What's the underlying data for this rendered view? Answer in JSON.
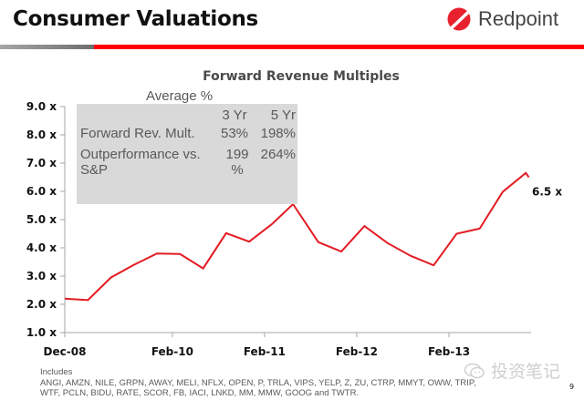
{
  "header": {
    "title": "Consumer Valuations",
    "brand": "Redpoint",
    "accent_color": "#ff0000",
    "brand_color": "#e8212e"
  },
  "inset": {
    "title": "Average %",
    "columns": [
      "",
      "3 Yr",
      "5 Yr"
    ],
    "rows": [
      {
        "label": "Forward Rev. Mult.",
        "yr3": "53%",
        "yr5": "198%"
      },
      {
        "label": "Outperformance vs. S&P",
        "yr3": "199 %",
        "yr5": "264%"
      }
    ]
  },
  "chart_data": {
    "type": "line",
    "title": "Forward Revenue Multiples",
    "xlabel": "",
    "ylabel": "",
    "x_tick_labels": [
      "Dec-08",
      "Feb-10",
      "Feb-11",
      "Feb-12",
      "Feb-13"
    ],
    "y_tick_labels": [
      "1.0 x",
      "2.0 x",
      "3.0 x",
      "4.0 x",
      "5.0 x",
      "6.0 x",
      "7.0 x",
      "8.0 x",
      "9.0 x"
    ],
    "ylim": [
      1.0,
      9.0
    ],
    "grid": false,
    "series": [
      {
        "name": "Forward Revenue Multiple",
        "color": "#e31b23",
        "x_months_from_dec08": [
          0,
          3,
          6,
          9,
          12,
          15,
          18,
          21,
          24,
          27,
          29.7,
          33,
          36,
          39,
          42,
          45,
          48,
          51,
          54,
          57,
          60,
          60.4
        ],
        "values": [
          2.2,
          2.15,
          2.95,
          3.4,
          3.8,
          3.78,
          3.27,
          4.52,
          4.22,
          4.85,
          5.55,
          4.2,
          3.87,
          4.77,
          4.17,
          3.72,
          3.38,
          4.5,
          4.68,
          5.98,
          6.65,
          6.5
        ]
      }
    ],
    "annotations": [
      {
        "text": "6.5 x",
        "value": 6.5
      }
    ],
    "x_tick_months_from_dec08": [
      0,
      14,
      26,
      38,
      50
    ]
  },
  "footer": {
    "includes_label": "Includes",
    "line1": "ANGI, AMZN, NILE, GRPN, AWAY, MELI, NFLX, OPEN, P, TRLA, VIPS, YELP, Z, ZU, CTRP,  MMYT, OWW, TRIP,",
    "line2": "WTF, PCLN, BIDU, RATE, SCOR, FB, IACI, LNKD, MM, MMW, GOOG and TWTR."
  },
  "watermark": "投资笔记",
  "page_number": "9"
}
